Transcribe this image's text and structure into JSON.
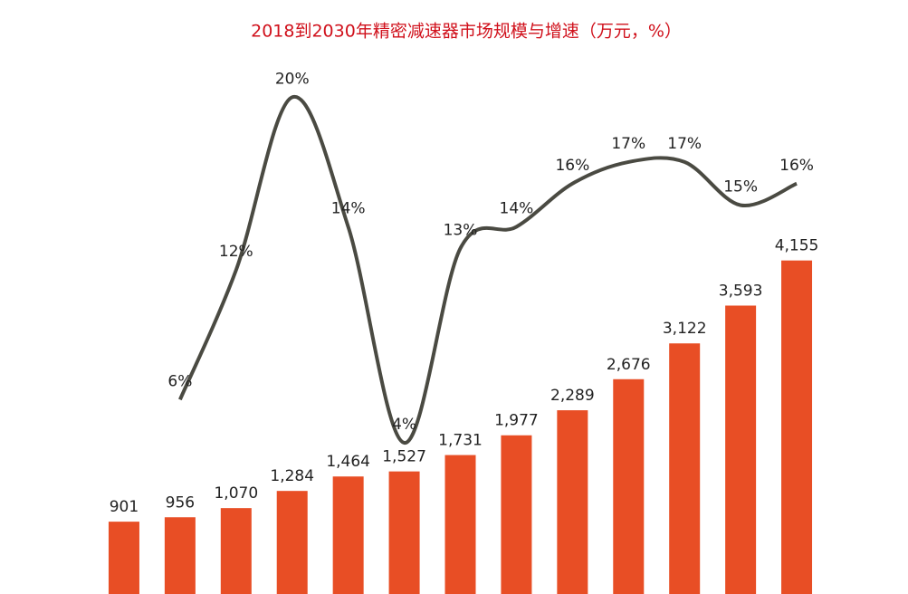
{
  "chart_data": {
    "type": "bar-line",
    "title": "2018到2030年精密减速器市场规模与增速（万元，%）",
    "categories": [
      null,
      null,
      null,
      null,
      null,
      null,
      null,
      null,
      null,
      null,
      null,
      null,
      null
    ],
    "series": [
      {
        "type": "bar",
        "color": "#e84e25",
        "values": [
          901,
          956,
          1070,
          1284,
          1464,
          1527,
          1731,
          1977,
          2289,
          2676,
          3122,
          3593,
          4155
        ],
        "value_labels": [
          "901",
          "956",
          "1,070",
          "1,284",
          "1,464",
          "1,527",
          "1,731",
          "1,977",
          "2,289",
          "2,676",
          "3,122",
          "3,593",
          "4,155"
        ]
      },
      {
        "type": "line",
        "axis": "y2",
        "color": "#4a4a42",
        "values": [
          null,
          6,
          12,
          20,
          14,
          4,
          13,
          14,
          16,
          17,
          17,
          15,
          16
        ],
        "value_labels": [
          null,
          "6%",
          "12%",
          "20%",
          "14%",
          "4%",
          "13%",
          "14%",
          "16%",
          "17%",
          "17%",
          "15%",
          "16%"
        ]
      }
    ],
    "ylim": [
      0,
      7400
    ],
    "y2lim": [
      -3,
      24.5
    ]
  }
}
